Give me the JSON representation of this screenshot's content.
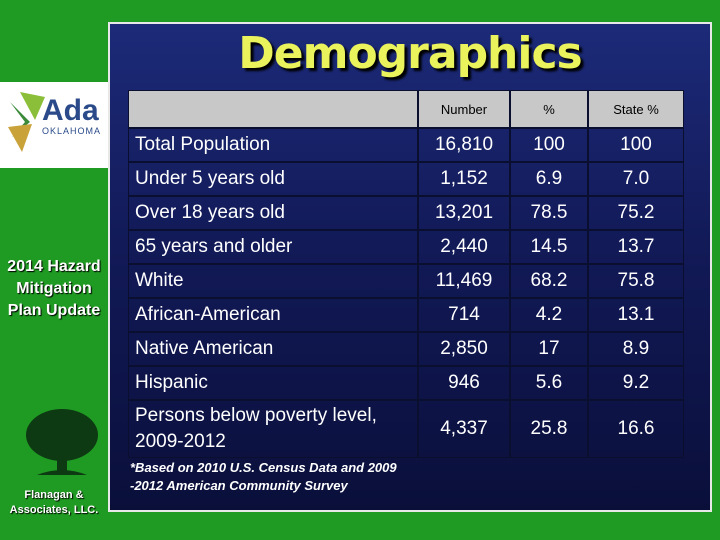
{
  "sidebar": {
    "logo_name": "Ada",
    "logo_state": "OKLAHOMA",
    "plan": "2014 Hazard Mitigation Plan Update",
    "company": "Flanagan & Associates, LLC."
  },
  "title": "Demographics",
  "table": {
    "header": [
      "Number",
      "%",
      "State %"
    ],
    "rows": [
      [
        "Total Population",
        "16,810",
        "100",
        "100"
      ],
      [
        "Under 5 years old",
        "1,152",
        "6.9",
        "7.0"
      ],
      [
        "Over 18 years old",
        "13,201",
        "78.5",
        "75.2"
      ],
      [
        "65 years and older",
        "2,440",
        "14.5",
        "13.7"
      ],
      [
        "White",
        "11,469",
        "68.2",
        "75.8"
      ],
      [
        "African-American",
        "714",
        "4.2",
        "13.1"
      ],
      [
        "Native American",
        "2,850",
        "17",
        "8.9"
      ],
      [
        "Hispanic",
        "946",
        "5.6",
        "9.2"
      ],
      [
        "Persons below poverty level,\n2009-2012",
        "4,337",
        "25.8",
        "16.6"
      ]
    ]
  },
  "note": "*Based on 2010 U.S. Census Data and 2009\n-2012 American Community Survey"
}
